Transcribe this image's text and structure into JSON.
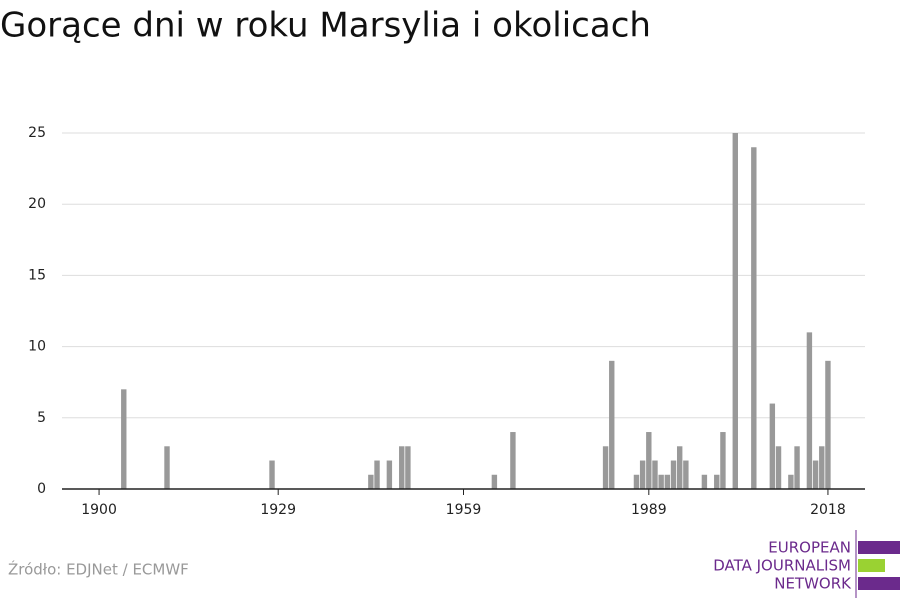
{
  "chart_data": {
    "type": "bar",
    "title": "Gorące dni w roku Marsylia i okolicach",
    "source": "Źródło: EDJNet / ECMWF",
    "logo": [
      "EUROPEAN",
      "DATA JOURNALISM",
      "NETWORK"
    ],
    "color": "#999999",
    "x": [
      1904,
      1911,
      1928,
      1944,
      1945,
      1947,
      1949,
      1950,
      1964,
      1967,
      1982,
      1983,
      1987,
      1988,
      1989,
      1990,
      1991,
      1992,
      1993,
      1994,
      1995,
      1998,
      2000,
      2001,
      2003,
      2006,
      2009,
      2010,
      2012,
      2013,
      2015,
      2016,
      2017,
      2018
    ],
    "values": [
      7,
      3,
      2,
      1,
      2,
      2,
      3,
      3,
      1,
      4,
      3,
      9,
      1,
      2,
      4,
      2,
      1,
      1,
      2,
      3,
      2,
      1,
      1,
      4,
      25,
      24,
      6,
      3,
      1,
      3,
      11,
      2,
      3,
      9
    ],
    "xlim": [
      1894,
      2024
    ],
    "xticks": [
      1900,
      1929,
      1959,
      1989,
      2018
    ],
    "ylim": [
      0,
      25
    ],
    "yticks": [
      0,
      5,
      10,
      15,
      20,
      25
    ],
    "grid": true
  }
}
